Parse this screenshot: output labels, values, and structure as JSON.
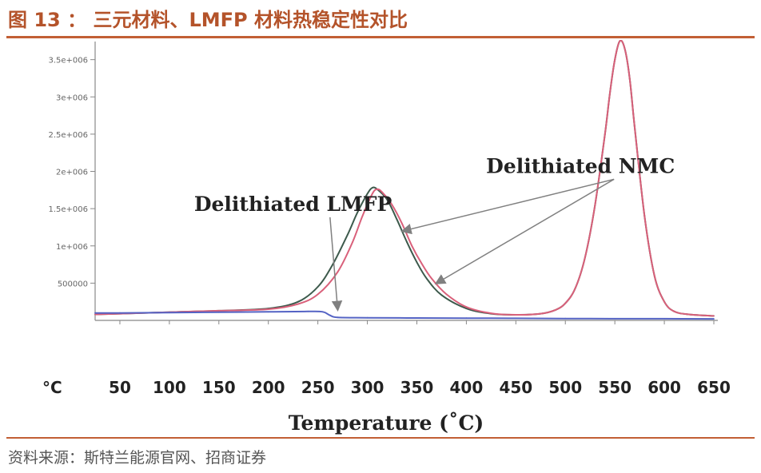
{
  "figure": {
    "title": "图 13 ： 三元材料、LMFP 材料热稳定性对比",
    "source": "资料来源：斯特兰能源官网、招商证券"
  },
  "colors": {
    "title": "#b4532a",
    "rule": "#c25f35",
    "nmc_dark_curve": "#3d5a4c",
    "nmc_red_curve": "#d9607a",
    "lmfp_curve": "#5463c4"
  },
  "chart_data": {
    "type": "line",
    "title": "",
    "xlabel": "Temperature (˚C)",
    "ylabel": "",
    "x_unit_label": "°C",
    "xlim": [
      25,
      650
    ],
    "ylim": [
      0,
      3700000
    ],
    "x_ticks": [
      "50",
      "100",
      "150",
      "200",
      "250",
      "300",
      "350",
      "400",
      "450",
      "500",
      "550",
      "600",
      "650"
    ],
    "y_ticks": [
      {
        "label": "500000",
        "value": 500000
      },
      {
        "label": "1e+006",
        "value": 1000000
      },
      {
        "label": "1.5e+006",
        "value": 1500000
      },
      {
        "label": "2e+006",
        "value": 2000000
      },
      {
        "label": "2.5e+006",
        "value": 2500000
      },
      {
        "label": "3e+006",
        "value": 3000000
      },
      {
        "label": "3.5e+006",
        "value": 3500000
      }
    ],
    "grid": false,
    "legend": "none",
    "series": [
      {
        "name": "Delithiated NMC",
        "color": "#3d5a4c",
        "x": [
          25,
          50,
          100,
          150,
          200,
          230,
          250,
          265,
          280,
          290,
          300,
          305,
          310,
          320,
          330,
          340,
          350,
          360,
          375,
          400,
          425,
          450,
          475,
          490,
          500,
          510,
          520,
          530,
          540,
          545,
          550,
          555,
          560,
          565,
          570,
          580,
          590,
          600,
          610,
          625,
          650
        ],
        "y": [
          80000,
          90000,
          110000,
          130000,
          160000,
          250000,
          450000,
          750000,
          1150000,
          1450000,
          1700000,
          1780000,
          1760000,
          1620000,
          1350000,
          1050000,
          780000,
          560000,
          340000,
          160000,
          90000,
          75000,
          90000,
          140000,
          230000,
          430000,
          850000,
          1550000,
          2500000,
          3050000,
          3500000,
          3750000,
          3650000,
          3250000,
          2600000,
          1400000,
          600000,
          250000,
          120000,
          80000,
          60000
        ]
      },
      {
        "name": "Delithiated NMC",
        "color": "#d9607a",
        "x": [
          25,
          50,
          100,
          150,
          200,
          230,
          250,
          270,
          285,
          295,
          305,
          310,
          315,
          325,
          335,
          345,
          355,
          365,
          380,
          400,
          425,
          450,
          475,
          490,
          500,
          510,
          520,
          530,
          540,
          545,
          550,
          555,
          560,
          565,
          570,
          580,
          590,
          600,
          610,
          625,
          650
        ],
        "y": [
          80000,
          90000,
          110000,
          130000,
          150000,
          220000,
          350000,
          650000,
          1050000,
          1400000,
          1700000,
          1760000,
          1720000,
          1550000,
          1300000,
          1000000,
          760000,
          560000,
          350000,
          180000,
          95000,
          75000,
          90000,
          140000,
          230000,
          430000,
          850000,
          1550000,
          2500000,
          3050000,
          3500000,
          3750000,
          3650000,
          3250000,
          2600000,
          1400000,
          600000,
          250000,
          120000,
          80000,
          60000
        ]
      },
      {
        "name": "Delithiated LMFP",
        "color": "#5463c4",
        "x": [
          25,
          50,
          100,
          150,
          200,
          240,
          255,
          262,
          270,
          300,
          350,
          400,
          450,
          500,
          550,
          600,
          650
        ],
        "y": [
          100000,
          100000,
          105000,
          110000,
          115000,
          120000,
          115000,
          70000,
          40000,
          35000,
          32000,
          30000,
          28000,
          25000,
          23000,
          22000,
          20000
        ]
      }
    ],
    "annotations": [
      {
        "text": "Delithiated NMC",
        "x": 420,
        "y": 1980000,
        "arrow_to": [
          [
            336,
            1200000
          ],
          [
            370,
            500000
          ]
        ]
      },
      {
        "text": "Delithiated LMFP",
        "x": 125,
        "y": 1470000,
        "arrow_to": [
          [
            270,
            150000
          ]
        ]
      }
    ]
  }
}
